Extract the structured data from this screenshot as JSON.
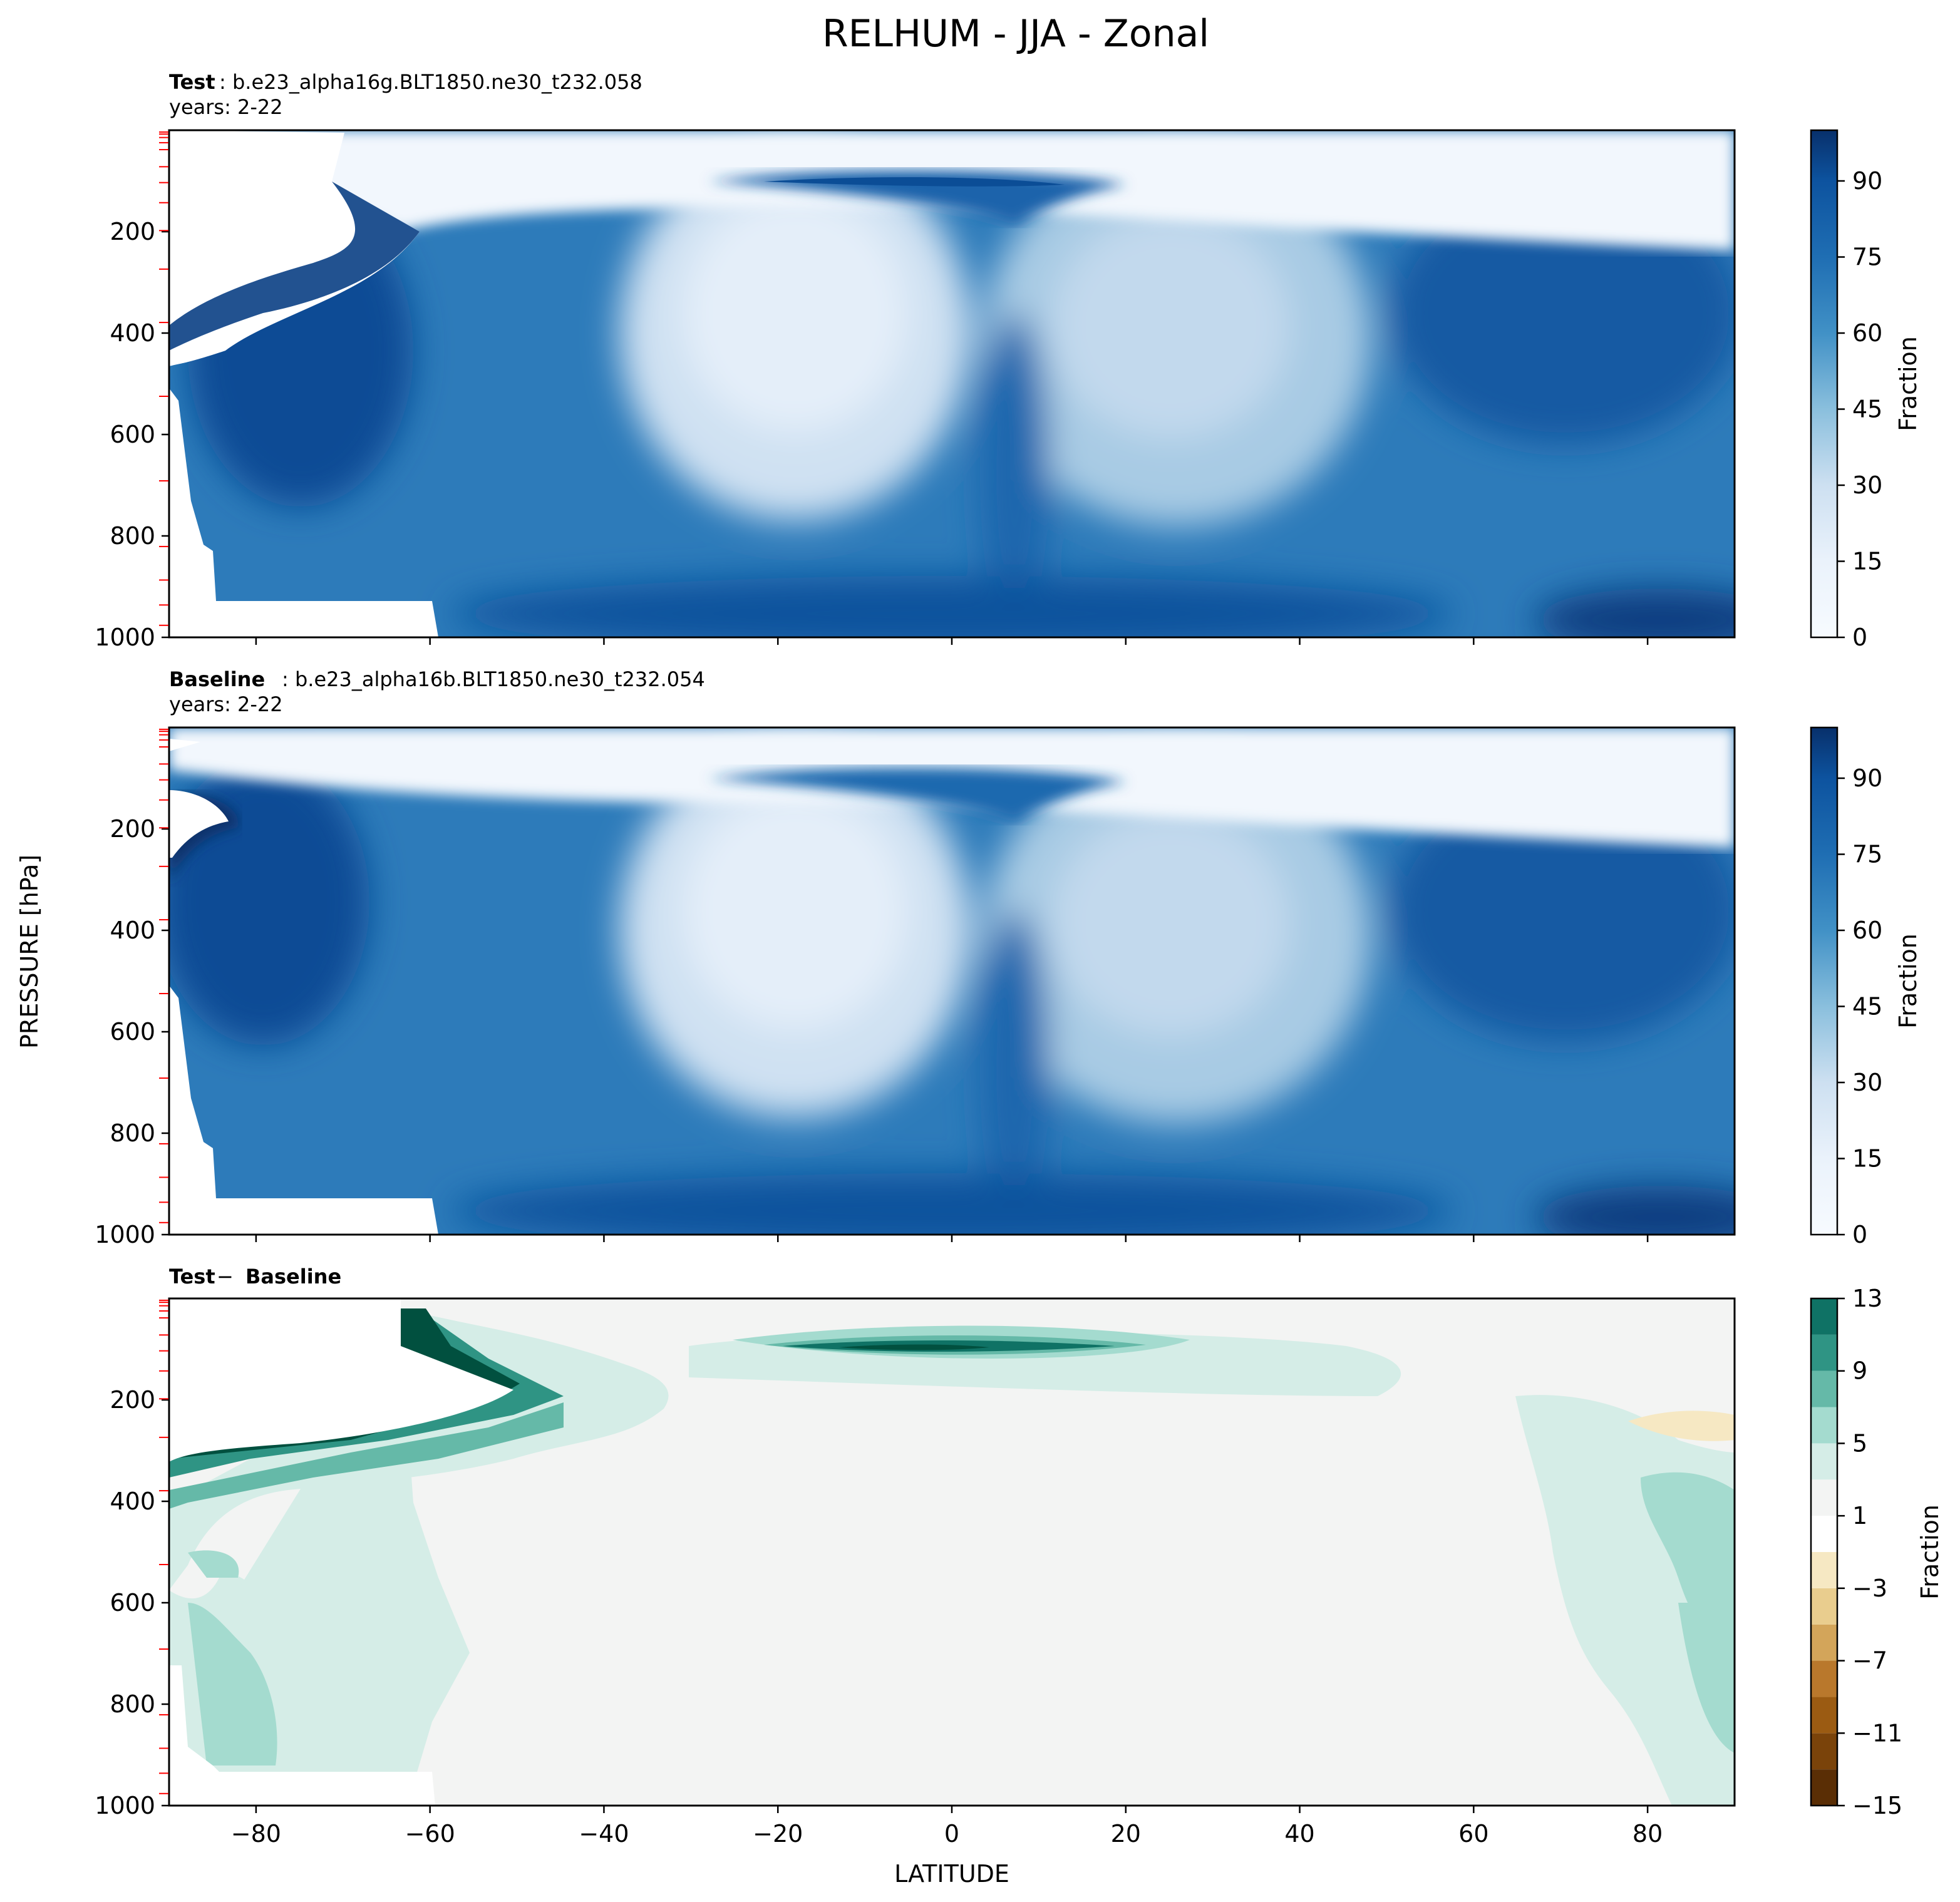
{
  "figure": {
    "title": "RELHUM - JJA - Zonal",
    "ylabel": "PRESSURE [hPa]",
    "xlabel": "LATITUDE"
  },
  "panels": [
    {
      "title_bold": "Test",
      "title_rest": ": b.e23_alpha16g.BLT1850.ne30_t232.058",
      "years": "years: 2-22",
      "colorbar_label": "Fraction",
      "colorbar_ticks": [
        "0",
        "15",
        "30",
        "45",
        "60",
        "75",
        "90"
      ]
    },
    {
      "title_bold": "Baseline",
      "title_rest": ": b.e23_alpha16b.BLT1850.ne30_t232.054",
      "years": "years: 2-22",
      "colorbar_label": "Fraction",
      "colorbar_ticks": [
        "0",
        "15",
        "30",
        "45",
        "60",
        "75",
        "90"
      ]
    },
    {
      "title_bold_a": "Test",
      "title_sep": " − ",
      "title_bold_b": "Baseline",
      "colorbar_label": "Fraction",
      "colorbar_ticks": [
        "−15",
        "−11",
        "−7",
        "−3",
        "1",
        "5",
        "9",
        "13"
      ]
    }
  ],
  "y_tick_labels": [
    "200",
    "400",
    "600",
    "800",
    "1000"
  ],
  "x_tick_labels": [
    "−80",
    "−60",
    "−40",
    "−20",
    "0",
    "20",
    "40",
    "60",
    "80"
  ],
  "colors": {
    "blues": [
      "#f7fbff",
      "#eaf2fb",
      "#dbe9f6",
      "#cde0f1",
      "#badaeb",
      "#a4cce3",
      "#8abfdd",
      "#6faed4",
      "#56a0ce",
      "#4191c6",
      "#2f7ebc",
      "#1f6eb3",
      "#1764ab",
      "#0d539f",
      "#08468b",
      "#08306b"
    ],
    "diff_pos": [
      "#f3f4f3",
      "#d5ede7",
      "#a4dbcf",
      "#65b9a8",
      "#2f9484",
      "#0f7265",
      "#01503f"
    ],
    "diff_neg": [
      "#f6e8c3",
      "#e9cd8e",
      "#d3a55a",
      "#b9782c",
      "#9b5b12",
      "#7a430a",
      "#5a2e05"
    ],
    "level_marker": "#ff0000"
  },
  "chart_data": [
    {
      "type": "contour",
      "title": "Test: b.e23_alpha16g.BLT1850.ne30_t232.058",
      "xlabel": "LATITUDE",
      "ylabel": "PRESSURE [hPa]",
      "xlim": [
        -90,
        90
      ],
      "ylim": [
        1000,
        0
      ],
      "colorbar": {
        "label": "Fraction",
        "range": [
          0,
          100
        ],
        "ticks": [
          0,
          15,
          30,
          45,
          60,
          75,
          90
        ]
      },
      "features": [
        {
          "name": "southern subtropical dry minimum",
          "lat": -20,
          "pressure": 450,
          "value": 15
        },
        {
          "name": "northern subtropical dry minimum",
          "lat": 25,
          "pressure": 450,
          "value": 30
        },
        {
          "name": "tropical tropopause moist band",
          "lat": 0,
          "pressure": 100,
          "value": 80
        },
        {
          "name": "equatorial moist column",
          "lat": 8,
          "pressure": 700,
          "value": 70
        },
        {
          "name": "Antarctic cold moist layer",
          "lat": -85,
          "pressure": 400,
          "value": 95
        },
        {
          "name": "Arctic boundary layer",
          "lat": 85,
          "pressure": 980,
          "value": 90
        },
        {
          "name": "stratosphere",
          "lat": 0,
          "pressure": 20,
          "value": 2
        }
      ]
    },
    {
      "type": "contour",
      "title": "Baseline: b.e23_alpha16b.BLT1850.ne30_t232.054",
      "xlabel": "LATITUDE",
      "ylabel": "PRESSURE [hPa]",
      "xlim": [
        -90,
        90
      ],
      "ylim": [
        1000,
        0
      ],
      "colorbar": {
        "label": "Fraction",
        "range": [
          0,
          100
        ],
        "ticks": [
          0,
          15,
          30,
          45,
          60,
          75,
          90
        ]
      },
      "features": [
        {
          "name": "southern subtropical dry minimum",
          "lat": -20,
          "pressure": 450,
          "value": 15
        },
        {
          "name": "northern subtropical dry minimum",
          "lat": 25,
          "pressure": 450,
          "value": 30
        },
        {
          "name": "tropical tropopause moist band",
          "lat": 5,
          "pressure": 120,
          "value": 75
        },
        {
          "name": "equatorial moist column",
          "lat": 8,
          "pressure": 700,
          "value": 70
        },
        {
          "name": "Antarctic upper moist layer",
          "lat": -82,
          "pressure": 250,
          "value": 95
        },
        {
          "name": "stratosphere",
          "lat": 0,
          "pressure": 20,
          "value": 2
        }
      ]
    },
    {
      "type": "contour",
      "title": "Test − Baseline",
      "xlabel": "LATITUDE",
      "ylabel": "PRESSURE [hPa]",
      "xlim": [
        -90,
        90
      ],
      "ylim": [
        1000,
        0
      ],
      "colorbar": {
        "label": "Fraction",
        "range": [
          -15,
          13
        ],
        "ticks": [
          -15,
          -11,
          -7,
          -3,
          1,
          5,
          9,
          13
        ]
      },
      "features": [
        {
          "name": "tropical tropopause positive difference",
          "lat": -7,
          "pressure": 100,
          "value": 12
        },
        {
          "name": "Antarctic upper troposphere positive difference",
          "lat": -55,
          "pressure": 200,
          "value": 12
        },
        {
          "name": "Antarctic lower troposphere positive difference",
          "lat": -80,
          "pressure": 650,
          "value": 3
        },
        {
          "name": "Arctic mid troposphere positive difference",
          "lat": 85,
          "pressure": 600,
          "value": 3
        },
        {
          "name": "Arctic upper troposphere negative difference",
          "lat": 88,
          "pressure": 245,
          "value": -1
        }
      ]
    }
  ]
}
